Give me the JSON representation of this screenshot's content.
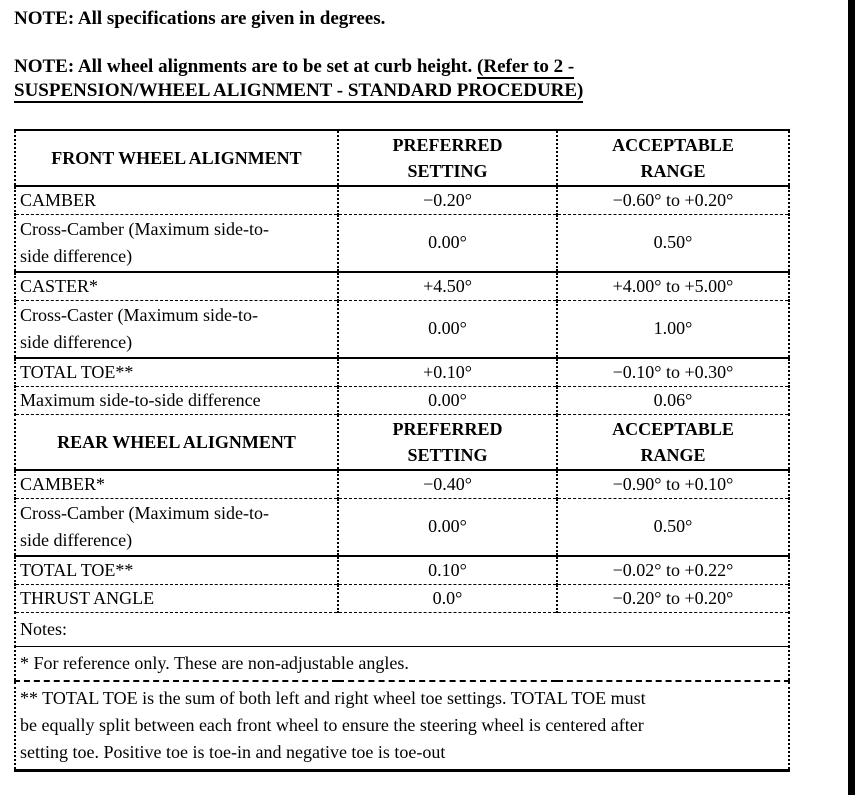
{
  "notes": {
    "note1": "NOTE: All specifications are given in degrees.",
    "note2_prefix": "NOTE: All wheel alignments are to be set at curb height. ",
    "note2_link": "(Refer to 2 -\nSUSPENSION/WHEEL ALIGNMENT - STANDARD PROCEDURE)"
  },
  "table": {
    "rows": [
      {
        "kind": "header",
        "sep": "solid",
        "cells": [
          "FRONT WHEEL ALIGNMENT",
          "PREFERRED\nSETTING",
          "ACCEPTABLE\nRANGE"
        ]
      },
      {
        "kind": "data",
        "sep": "dashed",
        "cells": [
          "CAMBER",
          "−0.20°",
          "−0.60° to +0.20°"
        ]
      },
      {
        "kind": "data",
        "sep": "solid",
        "tall": true,
        "cells": [
          "Cross-Camber (Maximum side-to-\nside difference)",
          "0.00°",
          "0.50°"
        ]
      },
      {
        "kind": "data",
        "sep": "dashed",
        "cells": [
          "CASTER*",
          "+4.50°",
          "+4.00° to +5.00°"
        ]
      },
      {
        "kind": "data",
        "sep": "solid",
        "tall": true,
        "cells": [
          "Cross-Caster (Maximum side-to-\nside difference)",
          "0.00°",
          "1.00°"
        ]
      },
      {
        "kind": "data",
        "sep": "dashed",
        "cells": [
          "TOTAL TOE**",
          "+0.10°",
          "−0.10° to +0.30°"
        ]
      },
      {
        "kind": "data",
        "sep": "dashed",
        "cells": [
          "Maximum side-to-side difference",
          "0.00°",
          "0.06°"
        ]
      },
      {
        "kind": "header",
        "sep": "solid",
        "cells": [
          "REAR WHEEL ALIGNMENT",
          "PREFERRED\nSETTING",
          "ACCEPTABLE\nRANGE"
        ]
      },
      {
        "kind": "data",
        "sep": "dashed",
        "cells": [
          "CAMBER*",
          "−0.40°",
          "−0.90° to +0.10°"
        ]
      },
      {
        "kind": "data",
        "sep": "solid",
        "tall": true,
        "cells": [
          "Cross-Camber (Maximum side-to-\nside difference)",
          "0.00°",
          "0.50°"
        ]
      },
      {
        "kind": "data",
        "sep": "dashed",
        "cells": [
          "TOTAL TOE**",
          "0.10°",
          "−0.02° to +0.22°"
        ]
      },
      {
        "kind": "data",
        "sep": "dashed",
        "cells": [
          "THRUST ANGLE",
          "0.0°",
          "−0.20° to +0.20°"
        ]
      },
      {
        "kind": "note",
        "sep": "thin",
        "cells": [
          "Notes:"
        ]
      },
      {
        "kind": "note",
        "sep": "dashed2",
        "cells": [
          "* For reference only. These are non-adjustable angles."
        ]
      },
      {
        "kind": "note",
        "sep": "none",
        "cells": [
          "** TOTAL TOE is the sum of both left and right wheel toe settings. TOTAL TOE must\nbe equally split between each front wheel to ensure the steering wheel is centered after\nsetting toe. Positive toe is toe-in and negative toe is toe-out"
        ]
      }
    ]
  },
  "decor": {
    "right_bar_color": "#000000",
    "text_color": "#000000",
    "background_color": "#ffffff"
  }
}
